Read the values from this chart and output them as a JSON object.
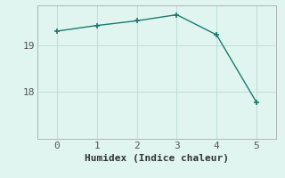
{
  "x": [
    0,
    1,
    2,
    3,
    4,
    5
  ],
  "y": [
    19.3,
    19.42,
    19.52,
    19.65,
    19.22,
    17.78
  ],
  "line_color": "#1a7a6e",
  "marker": "+",
  "marker_size": 5,
  "marker_linewidth": 1.2,
  "background_color": "#e0f5f0",
  "grid_color": "#c0ddd8",
  "xlabel": "Humidex (Indice chaleur)",
  "xlabel_fontsize": 8,
  "tick_fontsize": 8,
  "xlim": [
    -0.5,
    5.5
  ],
  "ylim": [
    17.0,
    19.85
  ],
  "yticks": [
    18,
    19
  ],
  "xticks": [
    0,
    1,
    2,
    3,
    4,
    5
  ],
  "linewidth": 1.0,
  "spine_color": "#aaaaaa",
  "tick_color": "#555555"
}
